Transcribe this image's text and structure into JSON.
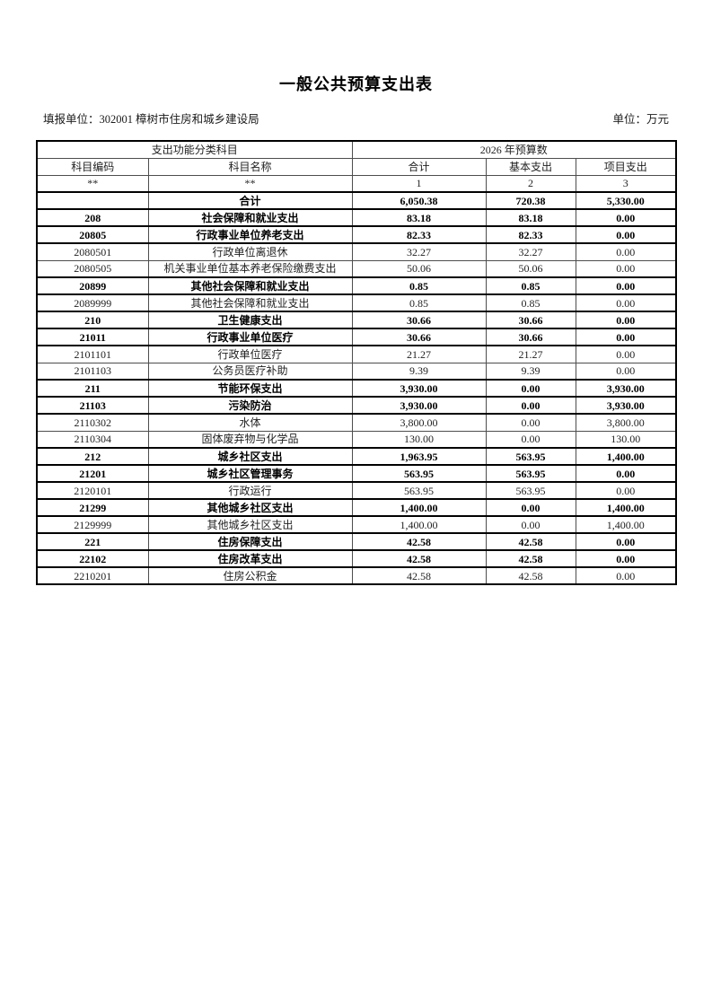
{
  "page": {
    "title": "一般公共预算支出表",
    "filer_label": "填报单位：",
    "filer_value": "302001 樟树市住房和城乡建设局",
    "unit_label": "单位：万元"
  },
  "table": {
    "group_headers": {
      "left": "支出功能分类科目",
      "right": "2026 年预算数"
    },
    "columns": [
      "科目编码",
      "科目名称",
      "合计",
      "基本支出",
      "项目支出"
    ],
    "marker_row": [
      "**",
      "**",
      "1",
      "2",
      "3"
    ],
    "rows": [
      {
        "code": "",
        "name": "合计",
        "total": "6,050.38",
        "basic": "720.38",
        "project": "5,330.00",
        "bold": true
      },
      {
        "code": "208",
        "name": "社会保障和就业支出",
        "total": "83.18",
        "basic": "83.18",
        "project": "0.00",
        "bold": true
      },
      {
        "code": "20805",
        "name": "行政事业单位养老支出",
        "total": "82.33",
        "basic": "82.33",
        "project": "0.00",
        "bold": true
      },
      {
        "code": "2080501",
        "name": "行政单位离退休",
        "total": "32.27",
        "basic": "32.27",
        "project": "0.00",
        "bold": false
      },
      {
        "code": "2080505",
        "name": "机关事业单位基本养老保险缴费支出",
        "total": "50.06",
        "basic": "50.06",
        "project": "0.00",
        "bold": false
      },
      {
        "code": "20899",
        "name": "其他社会保障和就业支出",
        "total": "0.85",
        "basic": "0.85",
        "project": "0.00",
        "bold": true
      },
      {
        "code": "2089999",
        "name": "其他社会保障和就业支出",
        "total": "0.85",
        "basic": "0.85",
        "project": "0.00",
        "bold": false
      },
      {
        "code": "210",
        "name": "卫生健康支出",
        "total": "30.66",
        "basic": "30.66",
        "project": "0.00",
        "bold": true
      },
      {
        "code": "21011",
        "name": "行政事业单位医疗",
        "total": "30.66",
        "basic": "30.66",
        "project": "0.00",
        "bold": true
      },
      {
        "code": "2101101",
        "name": "行政单位医疗",
        "total": "21.27",
        "basic": "21.27",
        "project": "0.00",
        "bold": false
      },
      {
        "code": "2101103",
        "name": "公务员医疗补助",
        "total": "9.39",
        "basic": "9.39",
        "project": "0.00",
        "bold": false
      },
      {
        "code": "211",
        "name": "节能环保支出",
        "total": "3,930.00",
        "basic": "0.00",
        "project": "3,930.00",
        "bold": true
      },
      {
        "code": "21103",
        "name": "污染防治",
        "total": "3,930.00",
        "basic": "0.00",
        "project": "3,930.00",
        "bold": true
      },
      {
        "code": "2110302",
        "name": "水体",
        "total": "3,800.00",
        "basic": "0.00",
        "project": "3,800.00",
        "bold": false
      },
      {
        "code": "2110304",
        "name": "固体废弃物与化学品",
        "total": "130.00",
        "basic": "0.00",
        "project": "130.00",
        "bold": false
      },
      {
        "code": "212",
        "name": "城乡社区支出",
        "total": "1,963.95",
        "basic": "563.95",
        "project": "1,400.00",
        "bold": true
      },
      {
        "code": "21201",
        "name": "城乡社区管理事务",
        "total": "563.95",
        "basic": "563.95",
        "project": "0.00",
        "bold": true
      },
      {
        "code": "2120101",
        "name": "行政运行",
        "total": "563.95",
        "basic": "563.95",
        "project": "0.00",
        "bold": false
      },
      {
        "code": "21299",
        "name": "其他城乡社区支出",
        "total": "1,400.00",
        "basic": "0.00",
        "project": "1,400.00",
        "bold": true
      },
      {
        "code": "2129999",
        "name": "其他城乡社区支出",
        "total": "1,400.00",
        "basic": "0.00",
        "project": "1,400.00",
        "bold": false
      },
      {
        "code": "221",
        "name": "住房保障支出",
        "total": "42.58",
        "basic": "42.58",
        "project": "0.00",
        "bold": true
      },
      {
        "code": "22102",
        "name": "住房改革支出",
        "total": "42.58",
        "basic": "42.58",
        "project": "0.00",
        "bold": true
      },
      {
        "code": "2210201",
        "name": "住房公积金",
        "total": "42.58",
        "basic": "42.58",
        "project": "0.00",
        "bold": false
      }
    ]
  }
}
